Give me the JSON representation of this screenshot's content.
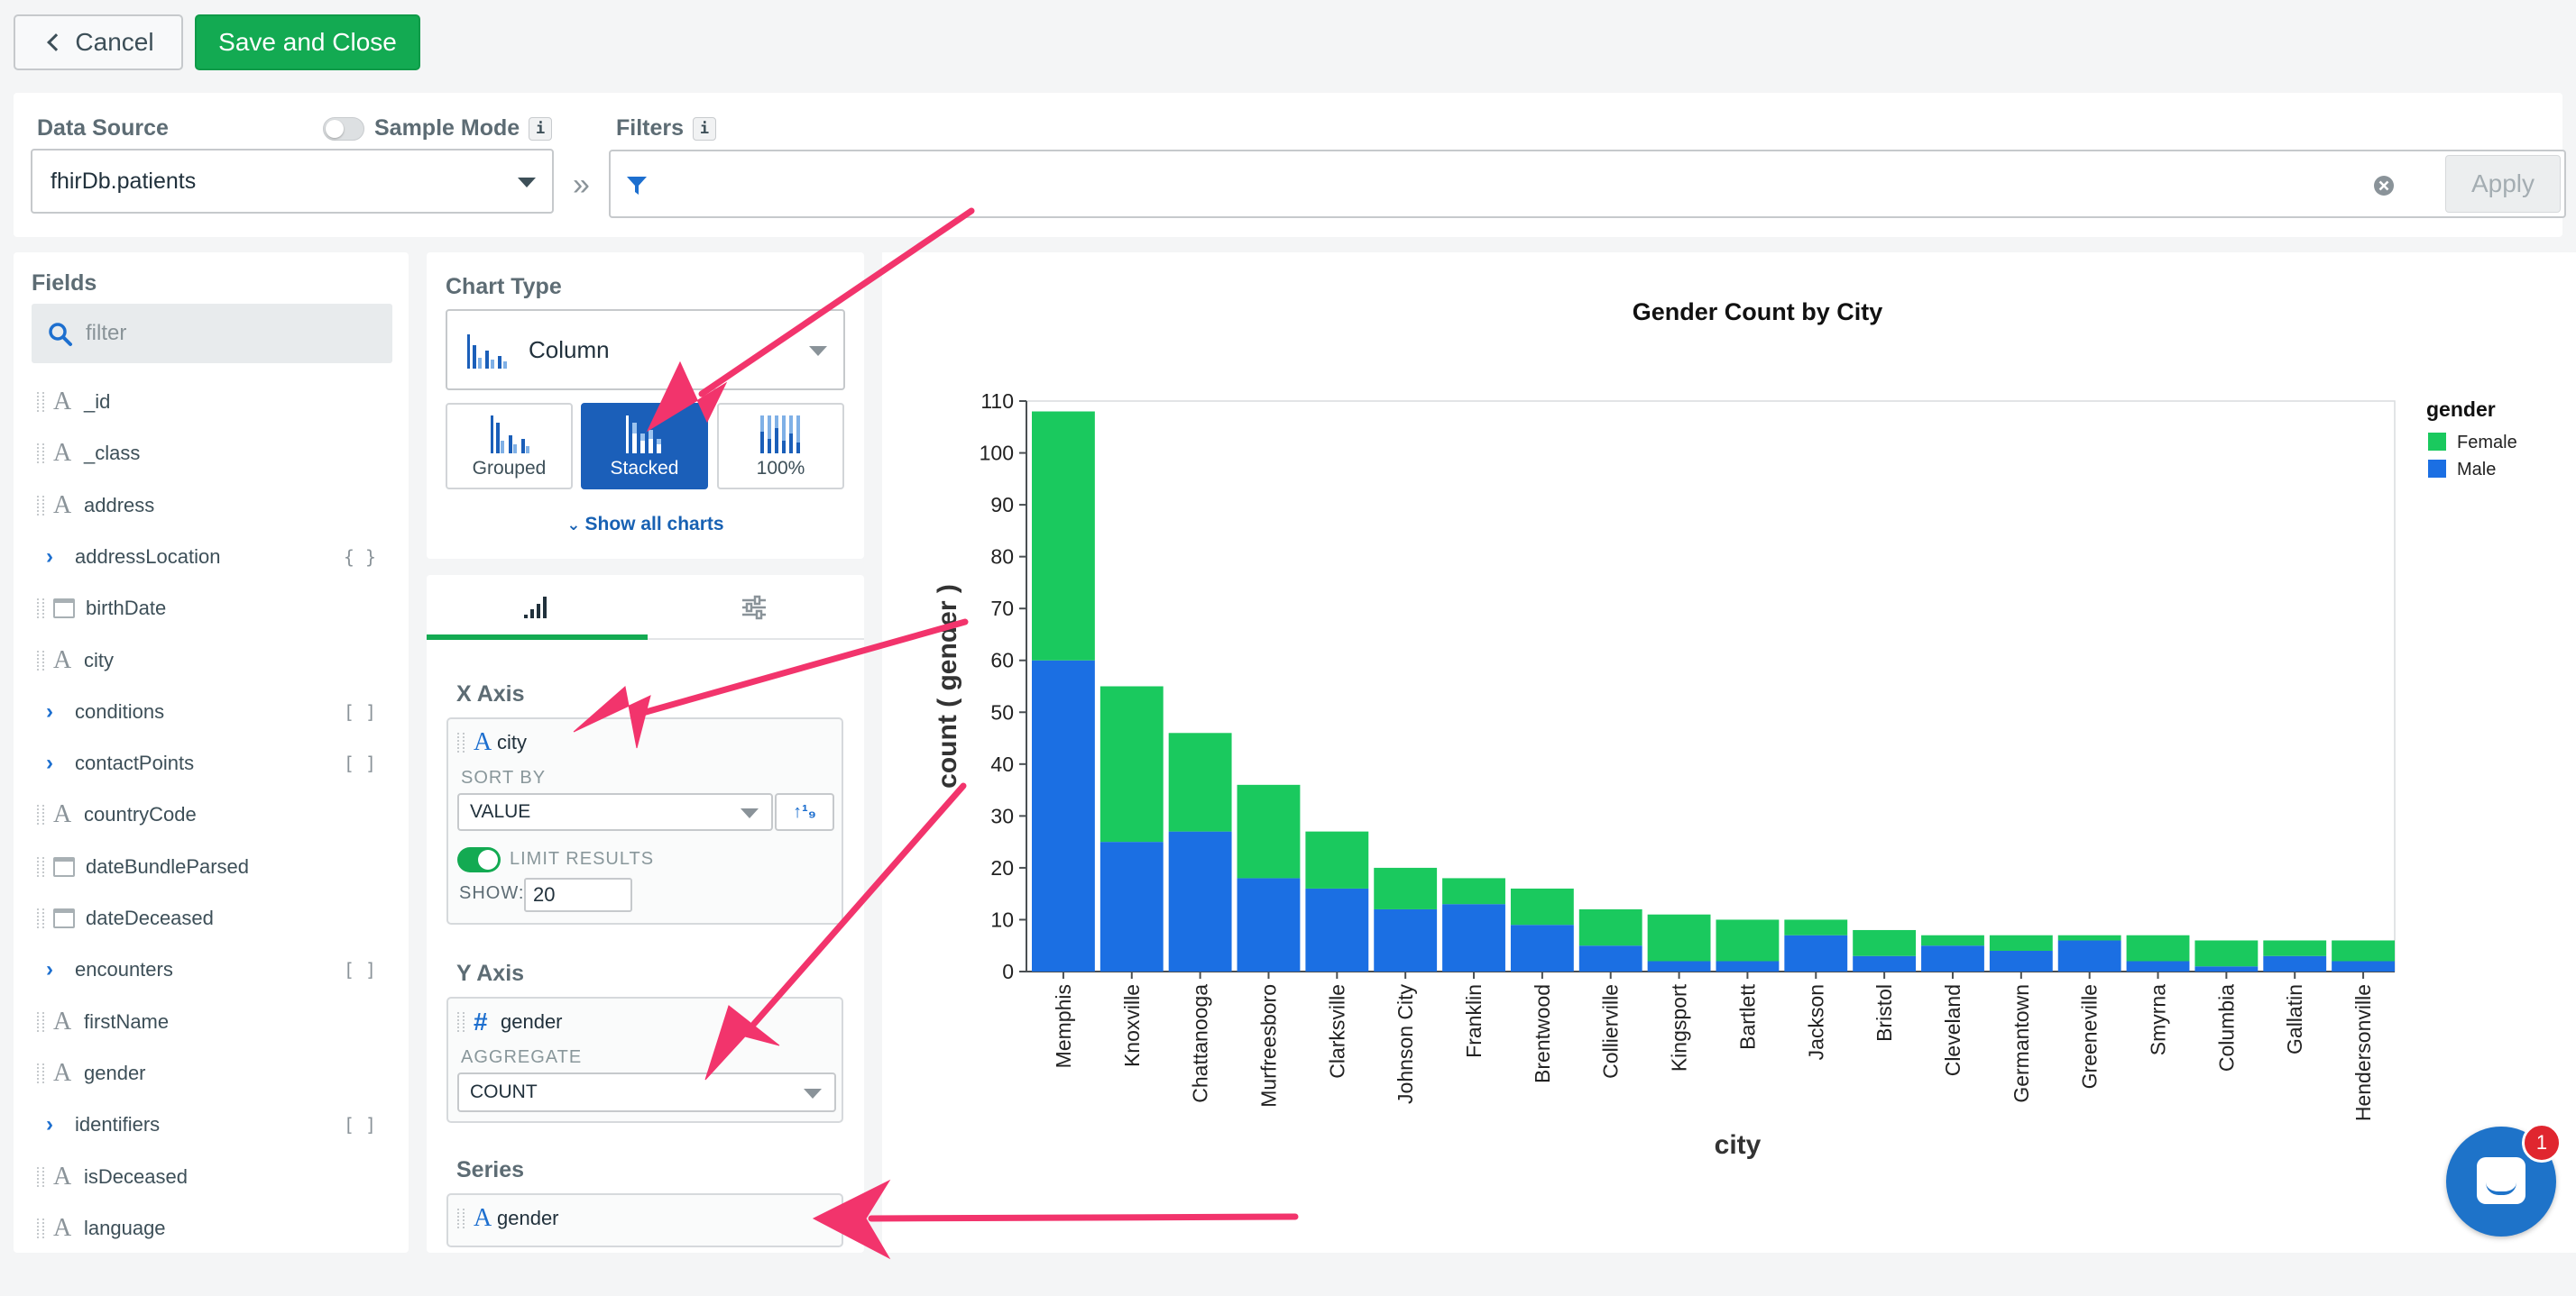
{
  "toolbar": {
    "cancel_label": "Cancel",
    "save_label": "Save and Close"
  },
  "data_source": {
    "label": "Data Source",
    "sample_mode_label": "Sample Mode",
    "sample_mode_on": false,
    "value": "fhirDb.patients",
    "info": "i"
  },
  "filters": {
    "label": "Filters",
    "info": "i",
    "apply_label": "Apply",
    "value": ""
  },
  "fields": {
    "title": "Fields",
    "search_placeholder": "filter",
    "items": [
      {
        "name": "_id",
        "type": "string",
        "expandable": false,
        "badge": ""
      },
      {
        "name": "_class",
        "type": "string",
        "expandable": false,
        "badge": ""
      },
      {
        "name": "address",
        "type": "string",
        "expandable": false,
        "badge": ""
      },
      {
        "name": "addressLocation",
        "type": "object",
        "expandable": true,
        "badge": "{ }"
      },
      {
        "name": "birthDate",
        "type": "date",
        "expandable": false,
        "badge": ""
      },
      {
        "name": "city",
        "type": "string",
        "expandable": false,
        "badge": ""
      },
      {
        "name": "conditions",
        "type": "array",
        "expandable": true,
        "badge": "[ ]"
      },
      {
        "name": "contactPoints",
        "type": "array",
        "expandable": true,
        "badge": "[ ]"
      },
      {
        "name": "countryCode",
        "type": "string",
        "expandable": false,
        "badge": ""
      },
      {
        "name": "dateBundleParsed",
        "type": "date",
        "expandable": false,
        "badge": ""
      },
      {
        "name": "dateDeceased",
        "type": "date",
        "expandable": false,
        "badge": ""
      },
      {
        "name": "encounters",
        "type": "array",
        "expandable": true,
        "badge": "[ ]"
      },
      {
        "name": "firstName",
        "type": "string",
        "expandable": false,
        "badge": ""
      },
      {
        "name": "gender",
        "type": "string",
        "expandable": false,
        "badge": ""
      },
      {
        "name": "identifiers",
        "type": "array",
        "expandable": true,
        "badge": "[ ]"
      },
      {
        "name": "isDeceased",
        "type": "string",
        "expandable": false,
        "badge": ""
      },
      {
        "name": "language",
        "type": "string",
        "expandable": false,
        "badge": ""
      }
    ]
  },
  "chart_type": {
    "label": "Chart Type",
    "selected": "Column",
    "variants": [
      {
        "label": "Grouped",
        "selected": false
      },
      {
        "label": "Stacked",
        "selected": true
      },
      {
        "label": "100%",
        "selected": false
      }
    ],
    "show_all_label": "Show all charts"
  },
  "encode": {
    "x_axis": {
      "label": "X Axis",
      "field": "city",
      "sort_by_label": "SORT BY",
      "sort_by": "VALUE",
      "limit_label": "LIMIT RESULTS",
      "limit_on": true,
      "show_label": "SHOW:",
      "show_value": "20"
    },
    "y_axis": {
      "label": "Y Axis",
      "field": "gender",
      "aggregate_label": "AGGREGATE",
      "aggregate": "COUNT"
    },
    "series": {
      "label": "Series",
      "field": "gender"
    }
  },
  "colors": {
    "female": "#1ac95e",
    "male": "#1b6fe3",
    "accent_green": "#13aa52",
    "arrow": "#f2346c"
  },
  "chat": {
    "badge_count": "1"
  },
  "chart_data": {
    "type": "bar",
    "stacked": true,
    "title": "Gender Count by City",
    "xlabel": "city",
    "ylabel": "count ( gender )",
    "ylim": [
      0,
      110
    ],
    "yticks": [
      0,
      10,
      20,
      30,
      40,
      50,
      60,
      70,
      80,
      90,
      100,
      110
    ],
    "grid": false,
    "legend_title": "gender",
    "legend_position": "top-right",
    "categories": [
      "Memphis",
      "Knoxville",
      "Chattanooga",
      "Murfreesboro",
      "Clarksville",
      "Johnson City",
      "Franklin",
      "Brentwood",
      "Collierville",
      "Kingsport",
      "Bartlett",
      "Jackson",
      "Bristol",
      "Cleveland",
      "Germantown",
      "Greeneville",
      "Smyrna",
      "Columbia",
      "Gallatin",
      "Hendersonville"
    ],
    "series": [
      {
        "name": "Male",
        "color": "#1b6fe3",
        "values": [
          60,
          25,
          27,
          18,
          16,
          12,
          13,
          9,
          5,
          2,
          2,
          7,
          3,
          5,
          4,
          6,
          2,
          1,
          3,
          2
        ]
      },
      {
        "name": "Female",
        "color": "#1ac95e",
        "values": [
          48,
          30,
          19,
          18,
          11,
          8,
          5,
          7,
          7,
          9,
          8,
          3,
          5,
          2,
          3,
          1,
          5,
          5,
          3,
          4
        ]
      }
    ]
  }
}
